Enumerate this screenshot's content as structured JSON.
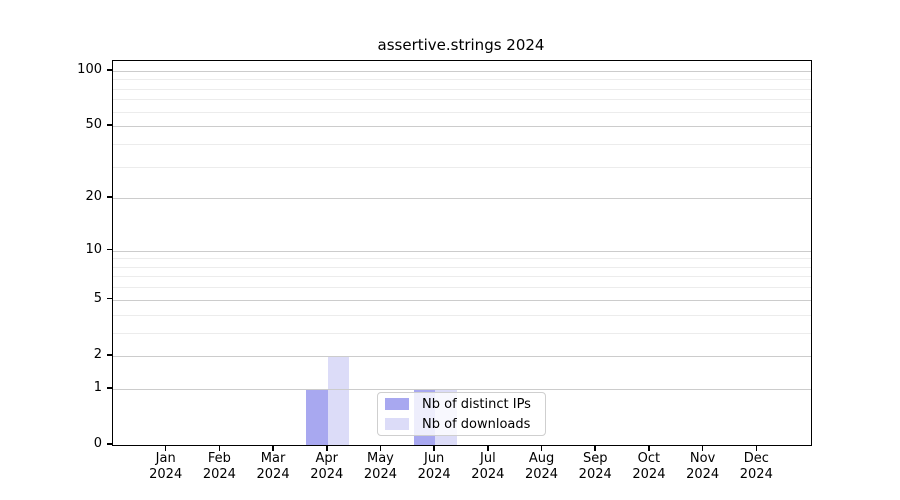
{
  "title": "assertive.strings 2024",
  "chart_data": {
    "type": "bar",
    "title": "assertive.strings 2024",
    "x_months": [
      "Jan",
      "Feb",
      "Mar",
      "Apr",
      "May",
      "Jun",
      "Jul",
      "Aug",
      "Sep",
      "Oct",
      "Nov",
      "Dec"
    ],
    "x_year": "2024",
    "series": [
      {
        "name": "Nb of distinct IPs",
        "color": "#a8a8f0",
        "values": [
          0,
          0,
          0,
          1,
          0,
          1,
          0,
          0,
          0,
          0,
          0,
          0
        ]
      },
      {
        "name": "Nb of downloads",
        "color": "#dcdcf8",
        "values": [
          0,
          0,
          0,
          2,
          0,
          1,
          0,
          0,
          0,
          0,
          0,
          0
        ]
      }
    ],
    "yscale": "log1p",
    "ylim": [
      0,
      113
    ],
    "ytick_values": [
      0,
      1,
      2,
      5,
      10,
      20,
      50,
      100
    ],
    "ytick_labels": [
      "0",
      "1",
      "2",
      "5",
      "10",
      "20",
      "50",
      "100"
    ],
    "minor_grid_values": [
      3,
      4,
      6,
      7,
      8,
      9,
      30,
      40,
      60,
      70,
      80,
      90
    ],
    "grid": "horizontal",
    "legend_entries": [
      "Nb of distinct IPs",
      "Nb of downloads"
    ]
  },
  "colors": {
    "major_grid": "#cccccc",
    "minor_grid": "#ececec",
    "axis": "#000000",
    "background": "#ffffff"
  }
}
